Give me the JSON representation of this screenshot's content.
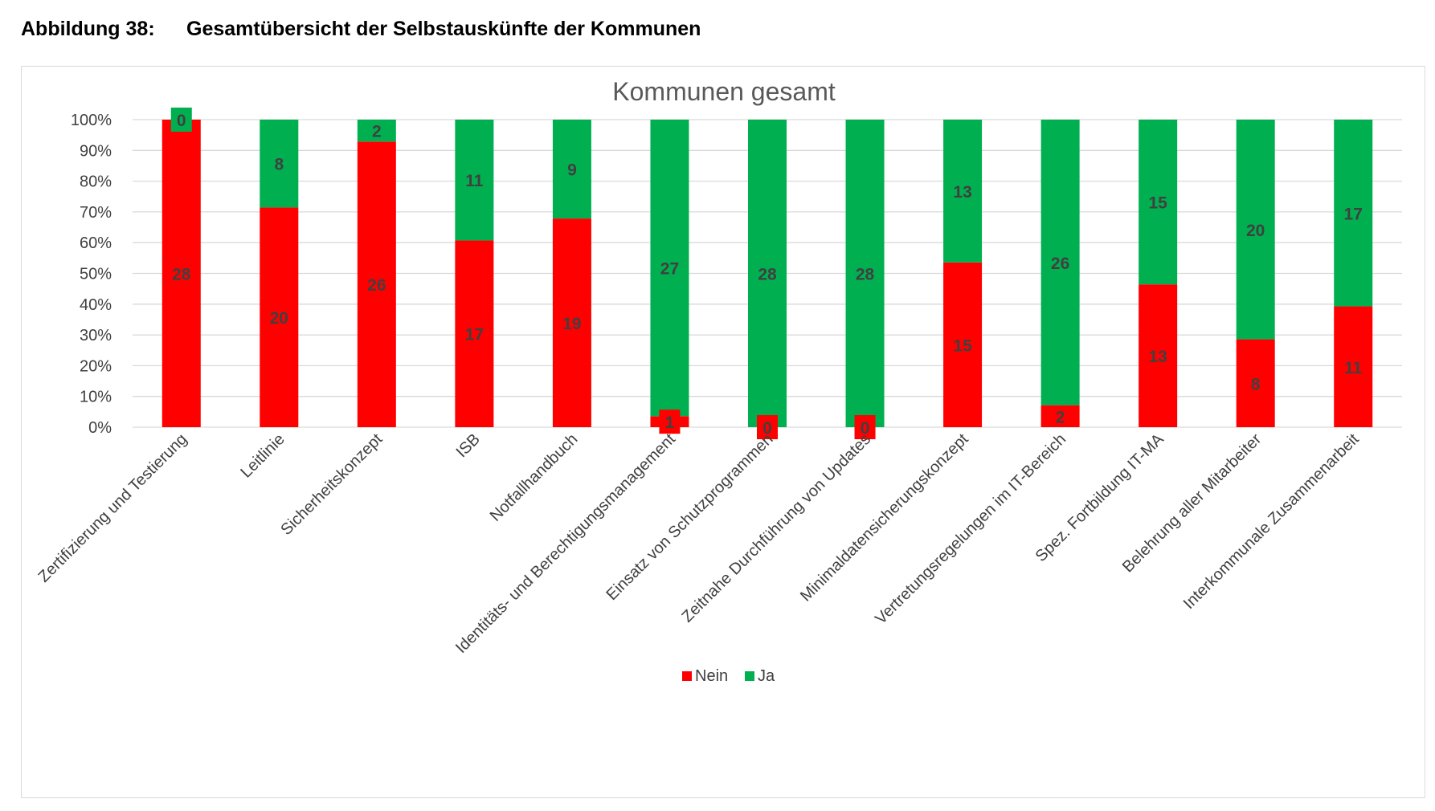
{
  "caption": {
    "number": "Abbildung 38:",
    "text": "Gesamtübersicht der Selbstauskünfte der Kommunen"
  },
  "colors": {
    "nein": "#ff0000",
    "ja": "#00b050",
    "grid": "#d9d9d9",
    "text": "#404040"
  },
  "chart_data": {
    "type": "bar",
    "stacked": "percent",
    "title": "Kommunen gesamt",
    "xlabel": "",
    "ylabel": "",
    "ylim": [
      0,
      100
    ],
    "y_ticks": [
      "0%",
      "10%",
      "20%",
      "30%",
      "40%",
      "50%",
      "60%",
      "70%",
      "80%",
      "90%",
      "100%"
    ],
    "grid": true,
    "legend_position": "bottom",
    "categories": [
      "Zertifizierung und Testierung",
      "Leitlinie",
      "Sicherheitskonzept",
      "ISB",
      "Notfallhandbuch",
      "Identitäts- und Berechtigungsmanagement",
      "Einsatz von Schutzprogrammen",
      "Zeitnahe Durchführung von Updates",
      "Minimaldatensicherungskonzept",
      "Vertretungsregelungen im IT-Bereich",
      "Spez. Fortbildung IT-MA",
      "Belehrung aller Mitarbeiter",
      "Interkommunale Zusammenarbeit"
    ],
    "series": [
      {
        "name": "Nein",
        "color": "#ff0000",
        "values": [
          28,
          20,
          26,
          17,
          19,
          1,
          0,
          0,
          15,
          2,
          13,
          8,
          11
        ]
      },
      {
        "name": "Ja",
        "color": "#00b050",
        "values": [
          0,
          8,
          2,
          11,
          9,
          27,
          28,
          28,
          13,
          26,
          15,
          20,
          17
        ]
      }
    ]
  }
}
